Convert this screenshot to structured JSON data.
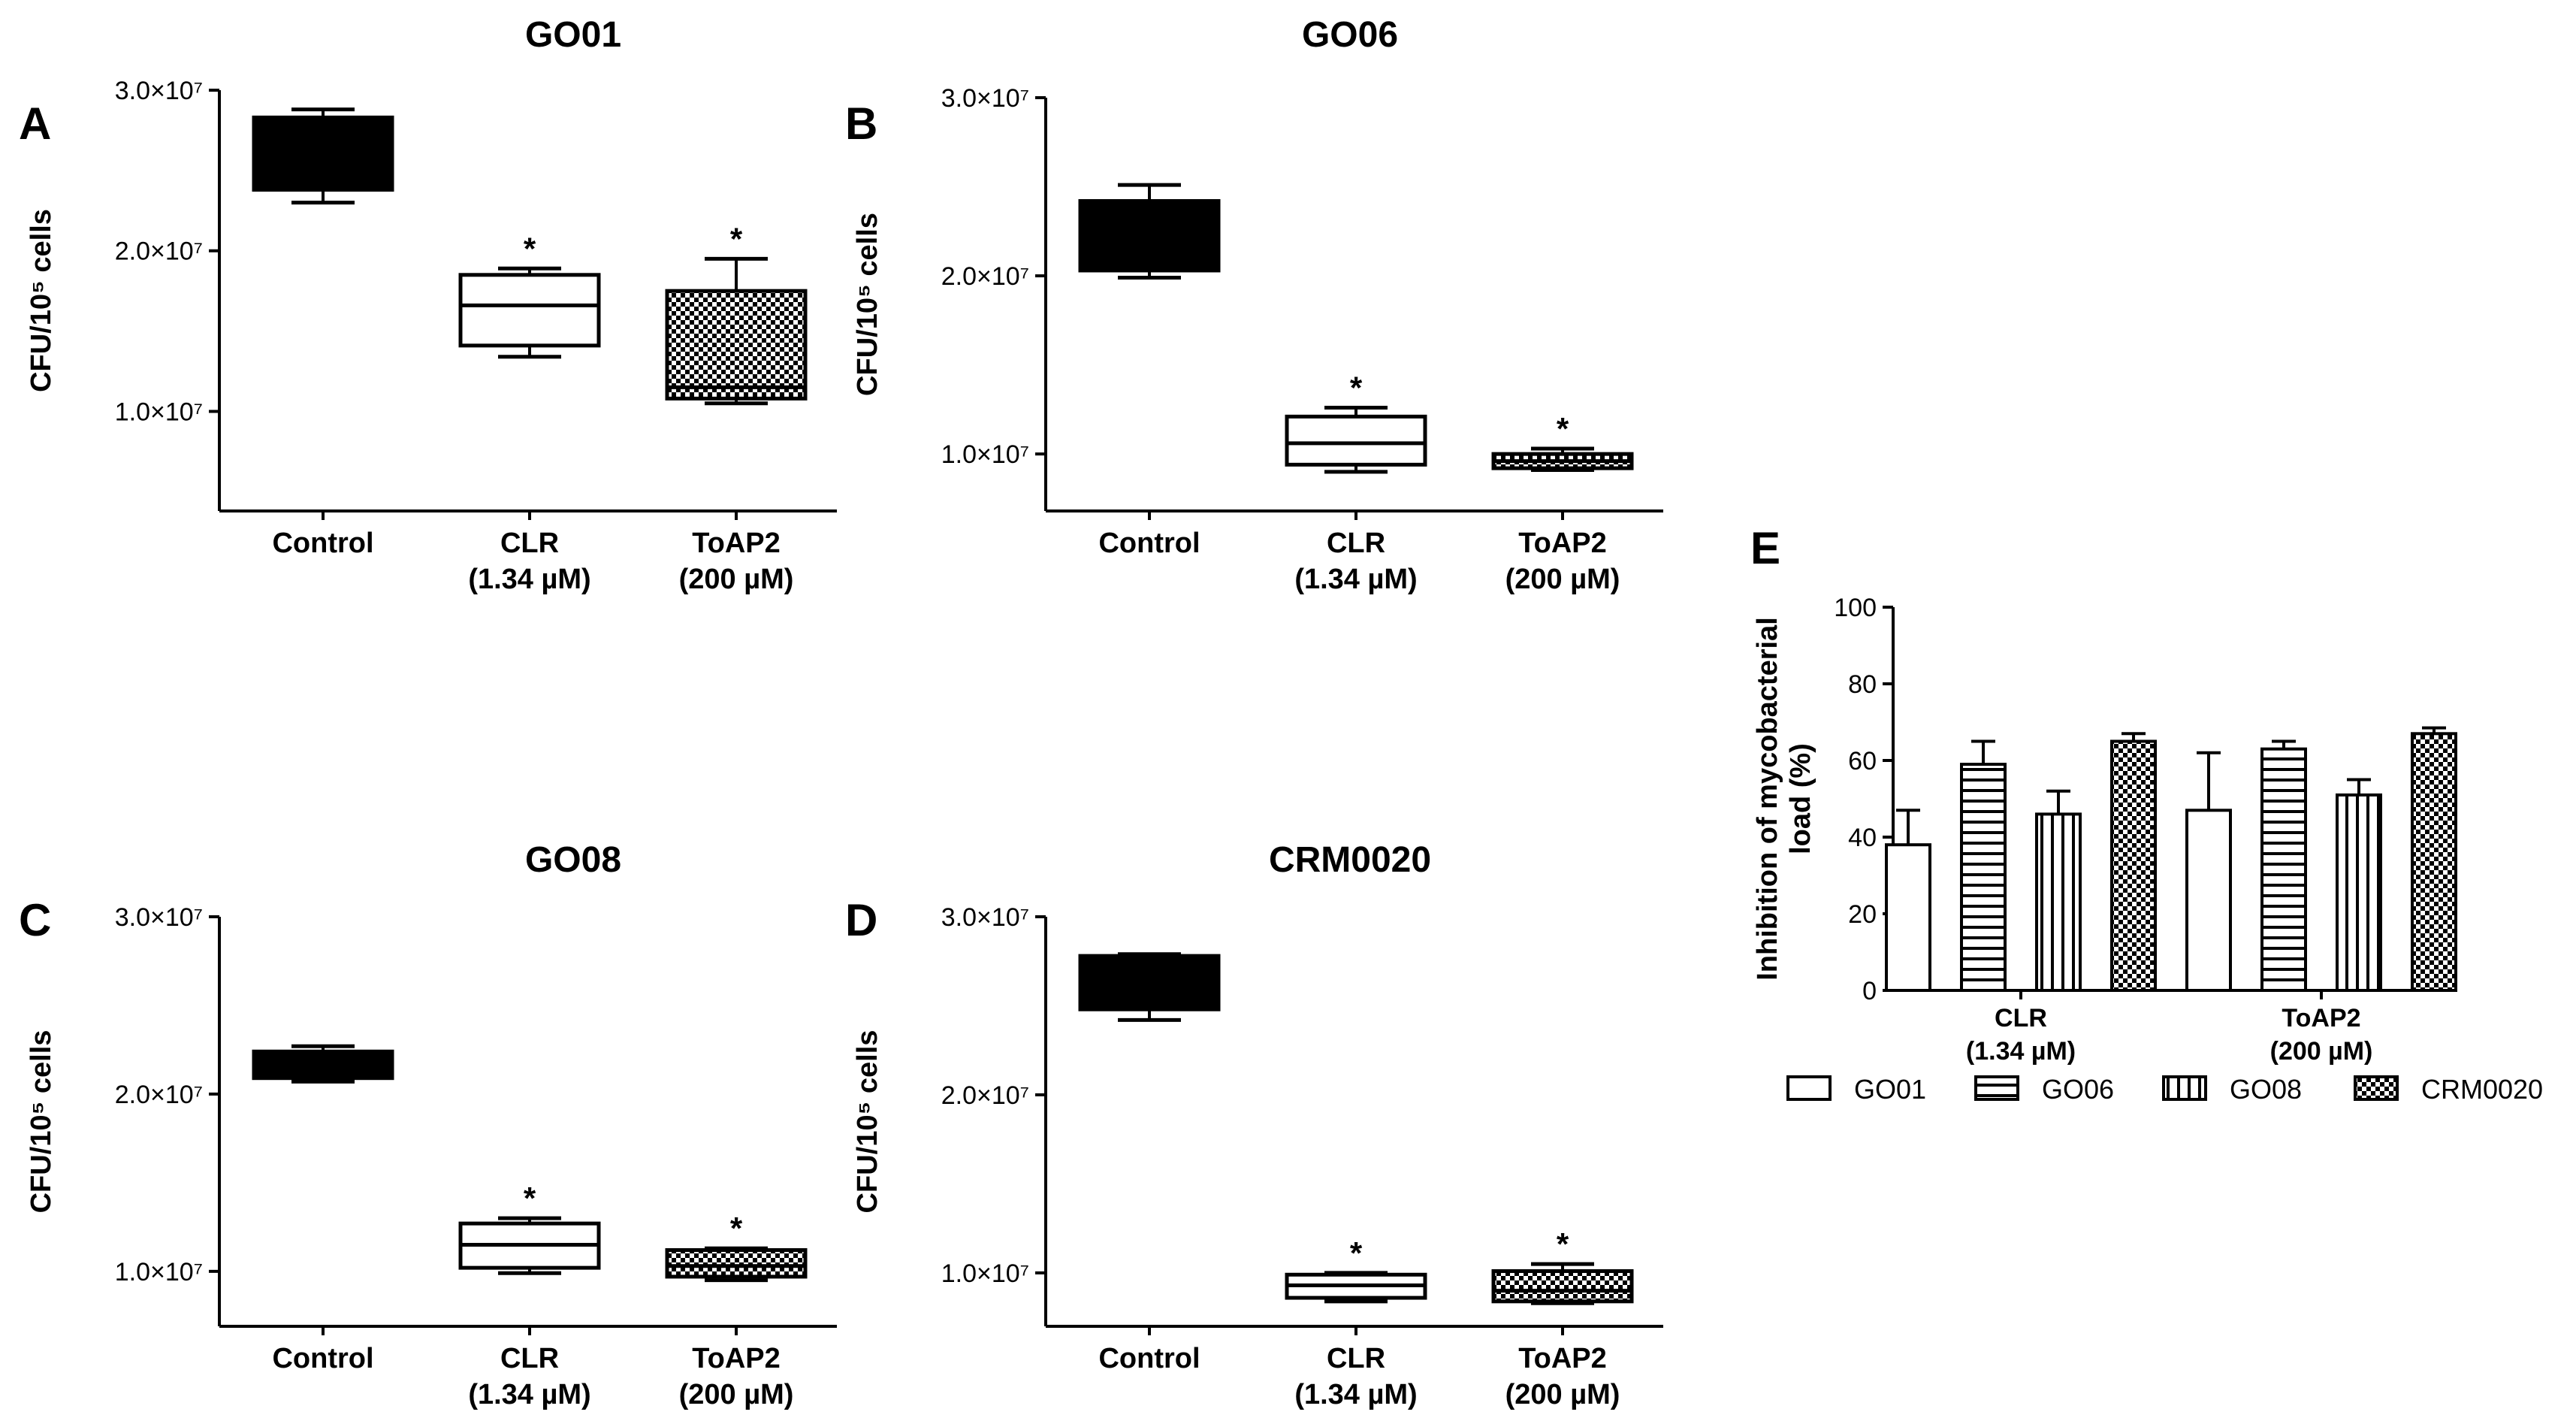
{
  "chart_data": [
    {
      "panel": "A",
      "type": "box",
      "title": "GO01",
      "ylabel": "CFU/10⁵ cells",
      "ylim": [
        3800000,
        30000000
      ],
      "yticks": [
        10000000,
        20000000,
        30000000
      ],
      "ytick_labels": [
        "1.0×10⁷",
        "2.0×10⁷",
        "3.0×10⁷"
      ],
      "categories": [
        {
          "line1": "Control",
          "line2": ""
        },
        {
          "line1": "CLR",
          "line2": "(1.34 µM)"
        },
        {
          "line1": "ToAP2",
          "line2": "(200 µM)"
        }
      ],
      "boxes": [
        {
          "min": 23000000,
          "q1": 23800000,
          "median": 26000000,
          "q3": 28300000,
          "max": 28800000,
          "fill": "solid",
          "significance": ""
        },
        {
          "min": 13400000,
          "q1": 14100000,
          "median": 16600000,
          "q3": 18500000,
          "max": 18900000,
          "fill": "white",
          "significance": "*"
        },
        {
          "min": 10500000,
          "q1": 10800000,
          "median": 11500000,
          "q3": 17500000,
          "max": 19500000,
          "fill": "checker",
          "significance": "*"
        }
      ]
    },
    {
      "panel": "B",
      "type": "box",
      "title": "GO06",
      "ylabel": "CFU/10⁵ cells",
      "ylim": [
        6800000,
        30000000
      ],
      "yticks": [
        10000000,
        20000000,
        30000000
      ],
      "ytick_labels": [
        "1.0×10⁷",
        "2.0×10⁷",
        "3.0×10⁷"
      ],
      "categories": [
        {
          "line1": "Control",
          "line2": ""
        },
        {
          "line1": "CLR",
          "line2": "(1.34 µM)"
        },
        {
          "line1": "ToAP2",
          "line2": "(200 µM)"
        }
      ],
      "boxes": [
        {
          "min": 19900000,
          "q1": 20300000,
          "median": 22000000,
          "q3": 24200000,
          "max": 25100000,
          "fill": "solid",
          "significance": ""
        },
        {
          "min": 9000000,
          "q1": 9400000,
          "median": 10600000,
          "q3": 12100000,
          "max": 12600000,
          "fill": "white",
          "significance": "*"
        },
        {
          "min": 9100000,
          "q1": 9200000,
          "median": 9600000,
          "q3": 10000000,
          "max": 10300000,
          "fill": "checker",
          "significance": "*"
        }
      ]
    },
    {
      "panel": "C",
      "type": "box",
      "title": "GO08",
      "ylabel": "CFU/10⁵ cells",
      "ylim": [
        6900000,
        30000000
      ],
      "yticks": [
        10000000,
        20000000,
        30000000
      ],
      "ytick_labels": [
        "1.0×10⁷",
        "2.0×10⁷",
        "3.0×10⁷"
      ],
      "categories": [
        {
          "line1": "Control",
          "line2": ""
        },
        {
          "line1": "CLR",
          "line2": "(1.34 µM)"
        },
        {
          "line1": "ToAP2",
          "line2": "(200 µM)"
        }
      ],
      "boxes": [
        {
          "min": 20700000,
          "q1": 20900000,
          "median": 21800000,
          "q3": 22400000,
          "max": 22700000,
          "fill": "solid",
          "significance": ""
        },
        {
          "min": 9900000,
          "q1": 10200000,
          "median": 11500000,
          "q3": 12700000,
          "max": 13000000,
          "fill": "white",
          "significance": "*"
        },
        {
          "min": 9500000,
          "q1": 9700000,
          "median": 10300000,
          "q3": 11200000,
          "max": 11300000,
          "fill": "checker",
          "significance": "*"
        }
      ]
    },
    {
      "panel": "D",
      "type": "box",
      "title": "CRM0020",
      "ylabel": "CFU/10⁵ cells",
      "ylim": [
        7000000,
        30000000
      ],
      "yticks": [
        10000000,
        20000000,
        30000000
      ],
      "ytick_labels": [
        "1.0×10⁷",
        "2.0×10⁷",
        "3.0×10⁷"
      ],
      "categories": [
        {
          "line1": "Control",
          "line2": ""
        },
        {
          "line1": "CLR",
          "line2": "(1.34 µM)"
        },
        {
          "line1": "ToAP2",
          "line2": "(200 µM)"
        }
      ],
      "boxes": [
        {
          "min": 24200000,
          "q1": 24800000,
          "median": 26500000,
          "q3": 27800000,
          "max": 27900000,
          "fill": "solid",
          "significance": ""
        },
        {
          "min": 8400000,
          "q1": 8600000,
          "median": 9300000,
          "q3": 9900000,
          "max": 10000000,
          "fill": "white",
          "significance": "*"
        },
        {
          "min": 8300000,
          "q1": 8400000,
          "median": 9000000,
          "q3": 10100000,
          "max": 10500000,
          "fill": "checker",
          "significance": "*"
        }
      ]
    },
    {
      "panel": "E",
      "type": "bar",
      "title": "",
      "ylabel_lines": [
        "Inhibition of mycobacterial",
        "load (%)"
      ],
      "ylim": [
        0,
        100
      ],
      "yticks": [
        0,
        20,
        40,
        60,
        80,
        100
      ],
      "categories": [
        {
          "line1": "CLR",
          "line2": "(1.34 µM)"
        },
        {
          "line1": "ToAP2",
          "line2": "(200 µM)"
        }
      ],
      "series": [
        {
          "name": "GO01",
          "pattern": "white",
          "values": [
            38,
            47
          ],
          "errors": [
            9,
            15
          ]
        },
        {
          "name": "GO06",
          "pattern": "hstripe",
          "values": [
            59,
            63
          ],
          "errors": [
            6,
            2
          ]
        },
        {
          "name": "GO08",
          "pattern": "vstripe",
          "values": [
            46,
            51
          ],
          "errors": [
            6,
            4
          ]
        },
        {
          "name": "CRM0020",
          "pattern": "checker",
          "values": [
            65,
            67
          ],
          "errors": [
            2,
            1.5
          ]
        }
      ],
      "legend_position": "bottom"
    }
  ]
}
